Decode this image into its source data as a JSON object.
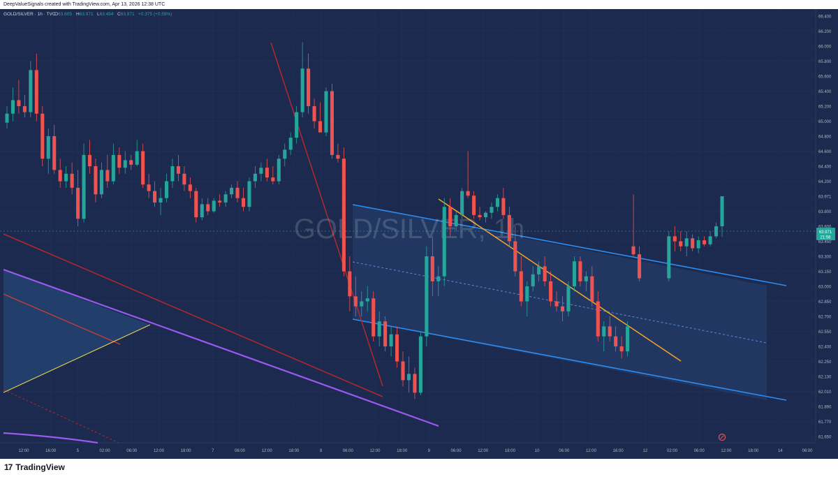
{
  "header": {
    "attribution": "DeepValueSignals created with TradingView.com, Apr 13, 2026 12:38 UTC"
  },
  "symbol_bar": {
    "symbol": "GOLD/SILVER · 1h · TVC",
    "o_label": "O",
    "o_value": "63.605",
    "h_label": "H",
    "h_value": "63.971",
    "l_label": "L",
    "l_value": "63.494",
    "c_label": "C",
    "c_value": "63.971",
    "change": "+0.375 (+0.59%)"
  },
  "watermark": "GOLD/SILVER, 1h",
  "price_badge": {
    "price": "63.971",
    "countdown": "21:58"
  },
  "footer": {
    "logo_text": "TradingView"
  },
  "colors": {
    "background": "#1b2a4e",
    "up": "#26a69a",
    "down": "#ef5350",
    "channel_line": "#2f8cf0",
    "channel_fill": "#223a66",
    "trend_orange": "#f5a623",
    "trend_red": "#b7272b",
    "trend_purple": "#9b59f0",
    "fan_yellow": "#e8d44d",
    "grid": "#22335a",
    "axis_text": "#b2b5be"
  },
  "chart_data": {
    "type": "candlestick",
    "title": "GOLD/SILVER, 1h",
    "y_axis": {
      "position": "right",
      "ticks": [
        "66.400",
        "66.200",
        "66.000",
        "65.800",
        "65.600",
        "65.400",
        "65.200",
        "65.000",
        "64.800",
        "64.600",
        "64.400",
        "64.200",
        "63.971",
        "63.800",
        "63.600",
        "63.450",
        "63.300",
        "63.150",
        "63.000",
        "62.850",
        "62.700",
        "62.550",
        "62.400",
        "62.250",
        "62.130",
        "62.010",
        "61.890",
        "61.770",
        "61.650"
      ],
      "ylim": [
        61.6,
        66.5
      ]
    },
    "x_axis": {
      "ticks": [
        "12:00",
        "16:00",
        "5",
        "02:00",
        "06:00",
        "12:00",
        "18:00",
        "7",
        "06:00",
        "12:00",
        "18:00",
        "8",
        "06:00",
        "12:00",
        "18:00",
        "9",
        "06:00",
        "12:00",
        "18:00",
        "10",
        "06:00",
        "12:00",
        "16:00",
        "12",
        "02:00",
        "06:00",
        "12:00",
        "18:00",
        "14",
        "06:00"
      ]
    },
    "candles": [
      {
        "o": 64.98,
        "h": 65.2,
        "l": 64.9,
        "c": 65.1
      },
      {
        "o": 65.1,
        "h": 65.45,
        "l": 65.0,
        "c": 65.28
      },
      {
        "o": 65.28,
        "h": 65.55,
        "l": 65.1,
        "c": 65.2
      },
      {
        "o": 65.2,
        "h": 65.35,
        "l": 65.05,
        "c": 65.12
      },
      {
        "o": 65.12,
        "h": 65.8,
        "l": 65.05,
        "c": 65.68
      },
      {
        "o": 65.68,
        "h": 65.9,
        "l": 65.0,
        "c": 65.1
      },
      {
        "o": 65.1,
        "h": 65.2,
        "l": 64.4,
        "c": 64.5
      },
      {
        "o": 64.5,
        "h": 64.9,
        "l": 64.3,
        "c": 64.8
      },
      {
        "o": 64.8,
        "h": 64.95,
        "l": 64.3,
        "c": 64.35
      },
      {
        "o": 64.35,
        "h": 64.5,
        "l": 64.1,
        "c": 64.2
      },
      {
        "o": 64.2,
        "h": 64.4,
        "l": 64.1,
        "c": 64.3
      },
      {
        "o": 64.3,
        "h": 64.45,
        "l": 64.0,
        "c": 64.1
      },
      {
        "o": 64.1,
        "h": 64.35,
        "l": 63.6,
        "c": 63.7
      },
      {
        "o": 63.7,
        "h": 64.7,
        "l": 63.65,
        "c": 64.55
      },
      {
        "o": 64.55,
        "h": 64.75,
        "l": 64.3,
        "c": 64.4
      },
      {
        "o": 64.4,
        "h": 64.5,
        "l": 63.9,
        "c": 64.0
      },
      {
        "o": 64.0,
        "h": 64.45,
        "l": 63.95,
        "c": 64.35
      },
      {
        "o": 64.35,
        "h": 64.55,
        "l": 64.1,
        "c": 64.2
      },
      {
        "o": 64.2,
        "h": 64.7,
        "l": 64.15,
        "c": 64.55
      },
      {
        "o": 64.55,
        "h": 64.65,
        "l": 64.3,
        "c": 64.38
      },
      {
        "o": 64.38,
        "h": 64.6,
        "l": 64.3,
        "c": 64.48
      },
      {
        "o": 64.48,
        "h": 64.55,
        "l": 64.35,
        "c": 64.42
      },
      {
        "o": 64.42,
        "h": 64.75,
        "l": 64.4,
        "c": 64.6
      },
      {
        "o": 64.6,
        "h": 64.7,
        "l": 64.1,
        "c": 64.15
      },
      {
        "o": 64.15,
        "h": 64.3,
        "l": 63.95,
        "c": 64.05
      },
      {
        "o": 64.05,
        "h": 64.2,
        "l": 63.85,
        "c": 63.9
      },
      {
        "o": 63.9,
        "h": 64.1,
        "l": 63.75,
        "c": 63.95
      },
      {
        "o": 63.95,
        "h": 64.3,
        "l": 63.9,
        "c": 64.2
      },
      {
        "o": 64.2,
        "h": 64.5,
        "l": 64.1,
        "c": 64.4
      },
      {
        "o": 64.4,
        "h": 64.55,
        "l": 64.2,
        "c": 64.3
      },
      {
        "o": 64.3,
        "h": 64.4,
        "l": 64.05,
        "c": 64.15
      },
      {
        "o": 64.15,
        "h": 64.25,
        "l": 63.95,
        "c": 64.05
      },
      {
        "o": 64.05,
        "h": 64.1,
        "l": 63.65,
        "c": 63.72
      },
      {
        "o": 63.72,
        "h": 63.95,
        "l": 63.68,
        "c": 63.88
      },
      {
        "o": 63.88,
        "h": 63.95,
        "l": 63.75,
        "c": 63.8
      },
      {
        "o": 63.8,
        "h": 63.95,
        "l": 63.78,
        "c": 63.92
      },
      {
        "o": 63.92,
        "h": 64.0,
        "l": 63.85,
        "c": 63.9
      },
      {
        "o": 63.9,
        "h": 64.05,
        "l": 63.85,
        "c": 64.0
      },
      {
        "o": 64.0,
        "h": 64.15,
        "l": 63.95,
        "c": 64.1
      },
      {
        "o": 64.1,
        "h": 64.2,
        "l": 63.9,
        "c": 63.95
      },
      {
        "o": 63.95,
        "h": 64.1,
        "l": 63.8,
        "c": 63.85
      },
      {
        "o": 63.85,
        "h": 64.25,
        "l": 63.8,
        "c": 64.2
      },
      {
        "o": 64.2,
        "h": 64.4,
        "l": 64.1,
        "c": 64.3
      },
      {
        "o": 64.3,
        "h": 64.45,
        "l": 64.2,
        "c": 64.38
      },
      {
        "o": 64.38,
        "h": 64.5,
        "l": 64.2,
        "c": 64.25
      },
      {
        "o": 64.25,
        "h": 64.4,
        "l": 64.15,
        "c": 64.2
      },
      {
        "o": 64.2,
        "h": 64.55,
        "l": 64.15,
        "c": 64.5
      },
      {
        "o": 64.5,
        "h": 64.7,
        "l": 64.4,
        "c": 64.62
      },
      {
        "o": 64.62,
        "h": 64.85,
        "l": 64.55,
        "c": 64.78
      },
      {
        "o": 64.78,
        "h": 65.2,
        "l": 64.7,
        "c": 65.12
      },
      {
        "o": 65.12,
        "h": 66.05,
        "l": 65.05,
        "c": 65.7
      },
      {
        "o": 65.7,
        "h": 65.9,
        "l": 65.1,
        "c": 65.2
      },
      {
        "o": 65.2,
        "h": 65.3,
        "l": 64.9,
        "c": 65.0
      },
      {
        "o": 65.0,
        "h": 65.25,
        "l": 64.85,
        "c": 64.85
      },
      {
        "o": 64.85,
        "h": 65.45,
        "l": 64.8,
        "c": 65.4
      },
      {
        "o": 65.4,
        "h": 65.5,
        "l": 64.5,
        "c": 64.55
      },
      {
        "o": 64.55,
        "h": 64.7,
        "l": 64.45,
        "c": 64.5
      },
      {
        "o": 64.5,
        "h": 64.65,
        "l": 63.1,
        "c": 63.15
      },
      {
        "o": 63.15,
        "h": 63.3,
        "l": 62.75,
        "c": 62.9
      },
      {
        "o": 62.9,
        "h": 63.1,
        "l": 62.7,
        "c": 62.8
      },
      {
        "o": 62.8,
        "h": 62.95,
        "l": 62.7,
        "c": 62.85
      },
      {
        "o": 62.85,
        "h": 63.0,
        "l": 62.75,
        "c": 62.88
      },
      {
        "o": 62.88,
        "h": 62.95,
        "l": 62.45,
        "c": 62.5
      },
      {
        "o": 62.5,
        "h": 62.75,
        "l": 62.4,
        "c": 62.65
      },
      {
        "o": 62.65,
        "h": 62.7,
        "l": 62.35,
        "c": 62.4
      },
      {
        "o": 62.4,
        "h": 62.6,
        "l": 62.3,
        "c": 62.52
      },
      {
        "o": 62.52,
        "h": 62.6,
        "l": 62.2,
        "c": 62.25
      },
      {
        "o": 62.25,
        "h": 62.35,
        "l": 62.05,
        "c": 62.1
      },
      {
        "o": 62.1,
        "h": 62.3,
        "l": 62.0,
        "c": 62.15
      },
      {
        "o": 62.15,
        "h": 62.2,
        "l": 61.95,
        "c": 62.0
      },
      {
        "o": 62.0,
        "h": 62.55,
        "l": 61.98,
        "c": 62.5
      },
      {
        "o": 62.5,
        "h": 63.4,
        "l": 62.4,
        "c": 63.3
      },
      {
        "o": 63.3,
        "h": 63.5,
        "l": 62.9,
        "c": 63.05
      },
      {
        "o": 63.05,
        "h": 63.2,
        "l": 62.9,
        "c": 63.1
      },
      {
        "o": 63.1,
        "h": 63.95,
        "l": 63.0,
        "c": 63.85
      },
      {
        "o": 63.85,
        "h": 63.95,
        "l": 63.5,
        "c": 63.6
      },
      {
        "o": 63.6,
        "h": 63.8,
        "l": 63.55,
        "c": 63.75
      },
      {
        "o": 63.75,
        "h": 64.1,
        "l": 63.7,
        "c": 64.05
      },
      {
        "o": 64.05,
        "h": 64.6,
        "l": 63.95,
        "c": 63.98
      },
      {
        "o": 63.98,
        "h": 64.05,
        "l": 63.7,
        "c": 63.75
      },
      {
        "o": 63.75,
        "h": 63.85,
        "l": 63.68,
        "c": 63.72
      },
      {
        "o": 63.72,
        "h": 63.8,
        "l": 63.65,
        "c": 63.78
      },
      {
        "o": 63.78,
        "h": 63.9,
        "l": 63.7,
        "c": 63.85
      },
      {
        "o": 63.85,
        "h": 64.0,
        "l": 63.8,
        "c": 63.95
      },
      {
        "o": 63.95,
        "h": 64.1,
        "l": 63.7,
        "c": 63.75
      },
      {
        "o": 63.75,
        "h": 63.85,
        "l": 63.4,
        "c": 63.45
      },
      {
        "o": 63.45,
        "h": 63.6,
        "l": 63.1,
        "c": 63.15
      },
      {
        "o": 63.15,
        "h": 63.3,
        "l": 62.8,
        "c": 62.85
      },
      {
        "o": 62.85,
        "h": 63.05,
        "l": 62.7,
        "c": 63.0
      },
      {
        "o": 63.0,
        "h": 63.2,
        "l": 62.95,
        "c": 63.12
      },
      {
        "o": 63.12,
        "h": 63.25,
        "l": 63.05,
        "c": 63.2
      },
      {
        "o": 63.2,
        "h": 63.3,
        "l": 63.0,
        "c": 63.05
      },
      {
        "o": 63.05,
        "h": 63.15,
        "l": 62.8,
        "c": 62.85
      },
      {
        "o": 62.85,
        "h": 62.95,
        "l": 62.75,
        "c": 62.8
      },
      {
        "o": 62.8,
        "h": 62.9,
        "l": 62.65,
        "c": 62.75
      },
      {
        "o": 62.75,
        "h": 63.05,
        "l": 62.7,
        "c": 63.0
      },
      {
        "o": 63.0,
        "h": 63.3,
        "l": 62.95,
        "c": 63.25
      },
      {
        "o": 63.25,
        "h": 63.3,
        "l": 63.0,
        "c": 63.05
      },
      {
        "o": 63.05,
        "h": 63.15,
        "l": 62.95,
        "c": 63.1
      },
      {
        "o": 63.1,
        "h": 63.2,
        "l": 62.8,
        "c": 62.85
      },
      {
        "o": 62.85,
        "h": 62.95,
        "l": 62.45,
        "c": 62.5
      },
      {
        "o": 62.5,
        "h": 62.65,
        "l": 62.35,
        "c": 62.6
      },
      {
        "o": 62.6,
        "h": 62.7,
        "l": 62.45,
        "c": 62.5
      },
      {
        "o": 62.5,
        "h": 62.6,
        "l": 62.35,
        "c": 62.4
      },
      {
        "o": 62.4,
        "h": 62.5,
        "l": 62.28,
        "c": 62.35
      },
      {
        "o": 62.35,
        "h": 62.65,
        "l": 62.3,
        "c": 62.6
      },
      {
        "o": 63.4,
        "h": 64.0,
        "l": 63.3,
        "c": 63.32
      },
      {
        "o": 63.32,
        "h": 63.4,
        "l": 63.05,
        "c": 63.08
      },
      {
        "o": 63.08,
        "h": 63.55,
        "l": 63.05,
        "c": 63.5
      },
      {
        "o": 63.5,
        "h": 63.6,
        "l": 63.35,
        "c": 63.45
      },
      {
        "o": 63.45,
        "h": 63.55,
        "l": 63.35,
        "c": 63.4
      },
      {
        "o": 63.4,
        "h": 63.55,
        "l": 63.3,
        "c": 63.48
      },
      {
        "o": 63.48,
        "h": 63.52,
        "l": 63.35,
        "c": 63.38
      },
      {
        "o": 63.38,
        "h": 63.5,
        "l": 63.33,
        "c": 63.46
      },
      {
        "o": 63.46,
        "h": 63.5,
        "l": 63.4,
        "c": 63.42
      },
      {
        "o": 63.42,
        "h": 63.55,
        "l": 63.4,
        "c": 63.5
      },
      {
        "o": 63.5,
        "h": 63.65,
        "l": 63.48,
        "c": 63.6
      },
      {
        "o": 63.6,
        "h": 63.971,
        "l": 63.494,
        "c": 63.971
      }
    ]
  }
}
